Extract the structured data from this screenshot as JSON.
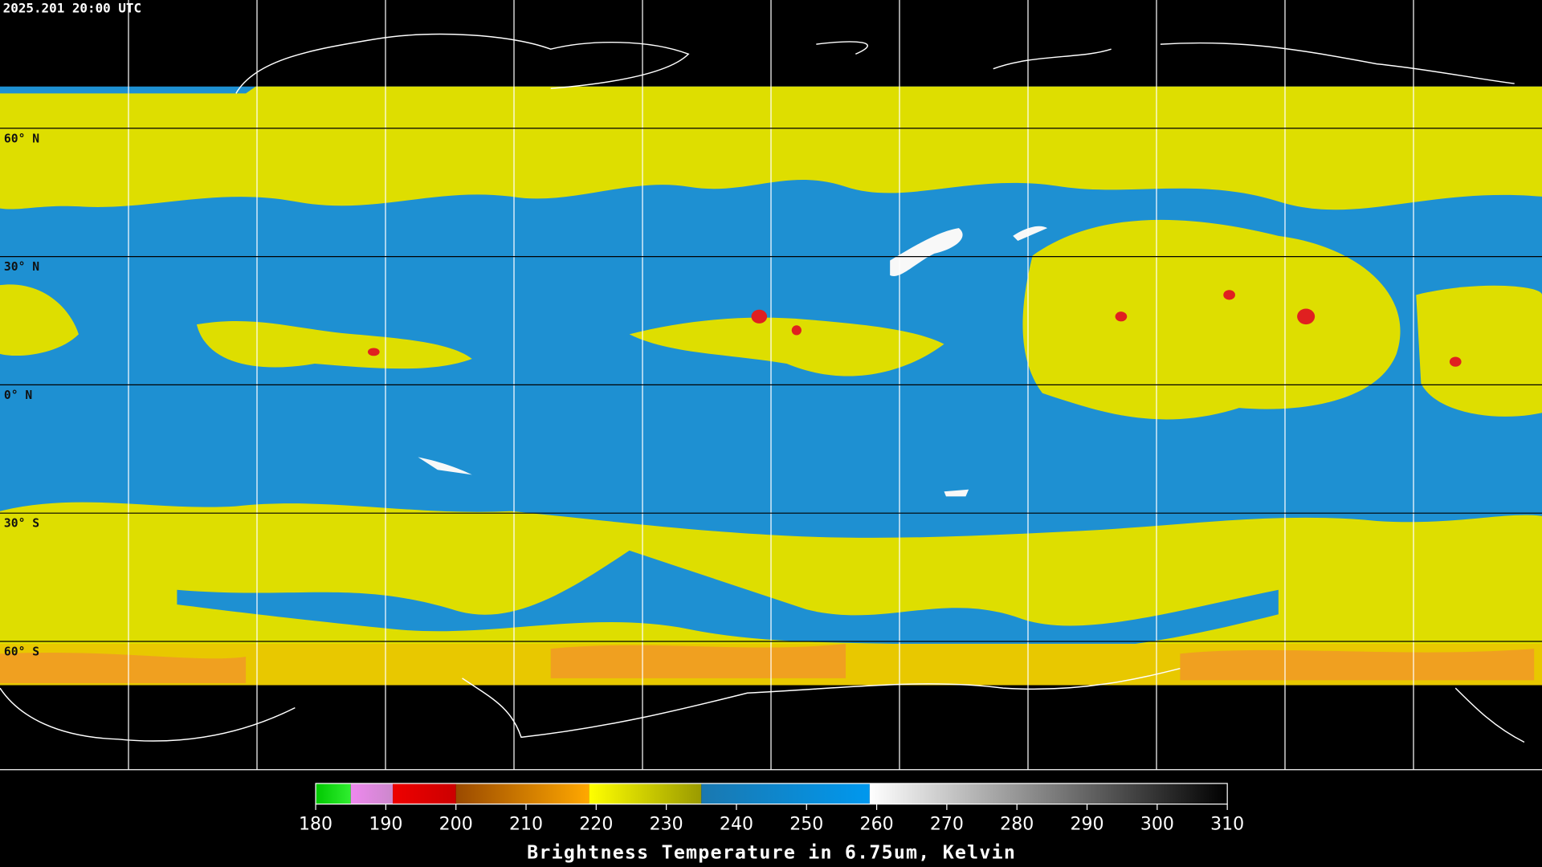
{
  "timestamp": "2025.201 20:00 UTC",
  "map": {
    "latitudes": [
      {
        "value": 60,
        "label": "60° N"
      },
      {
        "value": 30,
        "label": "30° N"
      },
      {
        "value": 0,
        "label": "0° N"
      },
      {
        "value": -30,
        "label": "30° S"
      },
      {
        "value": -60,
        "label": "60° S"
      }
    ]
  },
  "colorbar": {
    "range": [
      180,
      310
    ],
    "ticks": [
      180,
      190,
      200,
      210,
      220,
      230,
      240,
      250,
      260,
      270,
      280,
      290,
      300,
      310
    ],
    "segments": [
      {
        "from": 180,
        "to": 185,
        "colors": [
          "#00c800",
          "#30ee30"
        ]
      },
      {
        "from": 185,
        "to": 191,
        "colors": [
          "#ee88ee",
          "#cc88cc"
        ]
      },
      {
        "from": 191,
        "to": 200,
        "colors": [
          "#ee0000",
          "#cc0000"
        ]
      },
      {
        "from": 200,
        "to": 219,
        "colors": [
          "#9a4a00",
          "#ffa800"
        ]
      },
      {
        "from": 219,
        "to": 235,
        "colors": [
          "#ffff00",
          "#9a9a00"
        ]
      },
      {
        "from": 235,
        "to": 259,
        "colors": [
          "#1a78b0",
          "#0098ee"
        ]
      },
      {
        "from": 259,
        "to": 310,
        "colors": [
          "#ffffff",
          "#000000"
        ]
      }
    ],
    "title": "Brightness Temperature in 6.75um, Kelvin"
  }
}
